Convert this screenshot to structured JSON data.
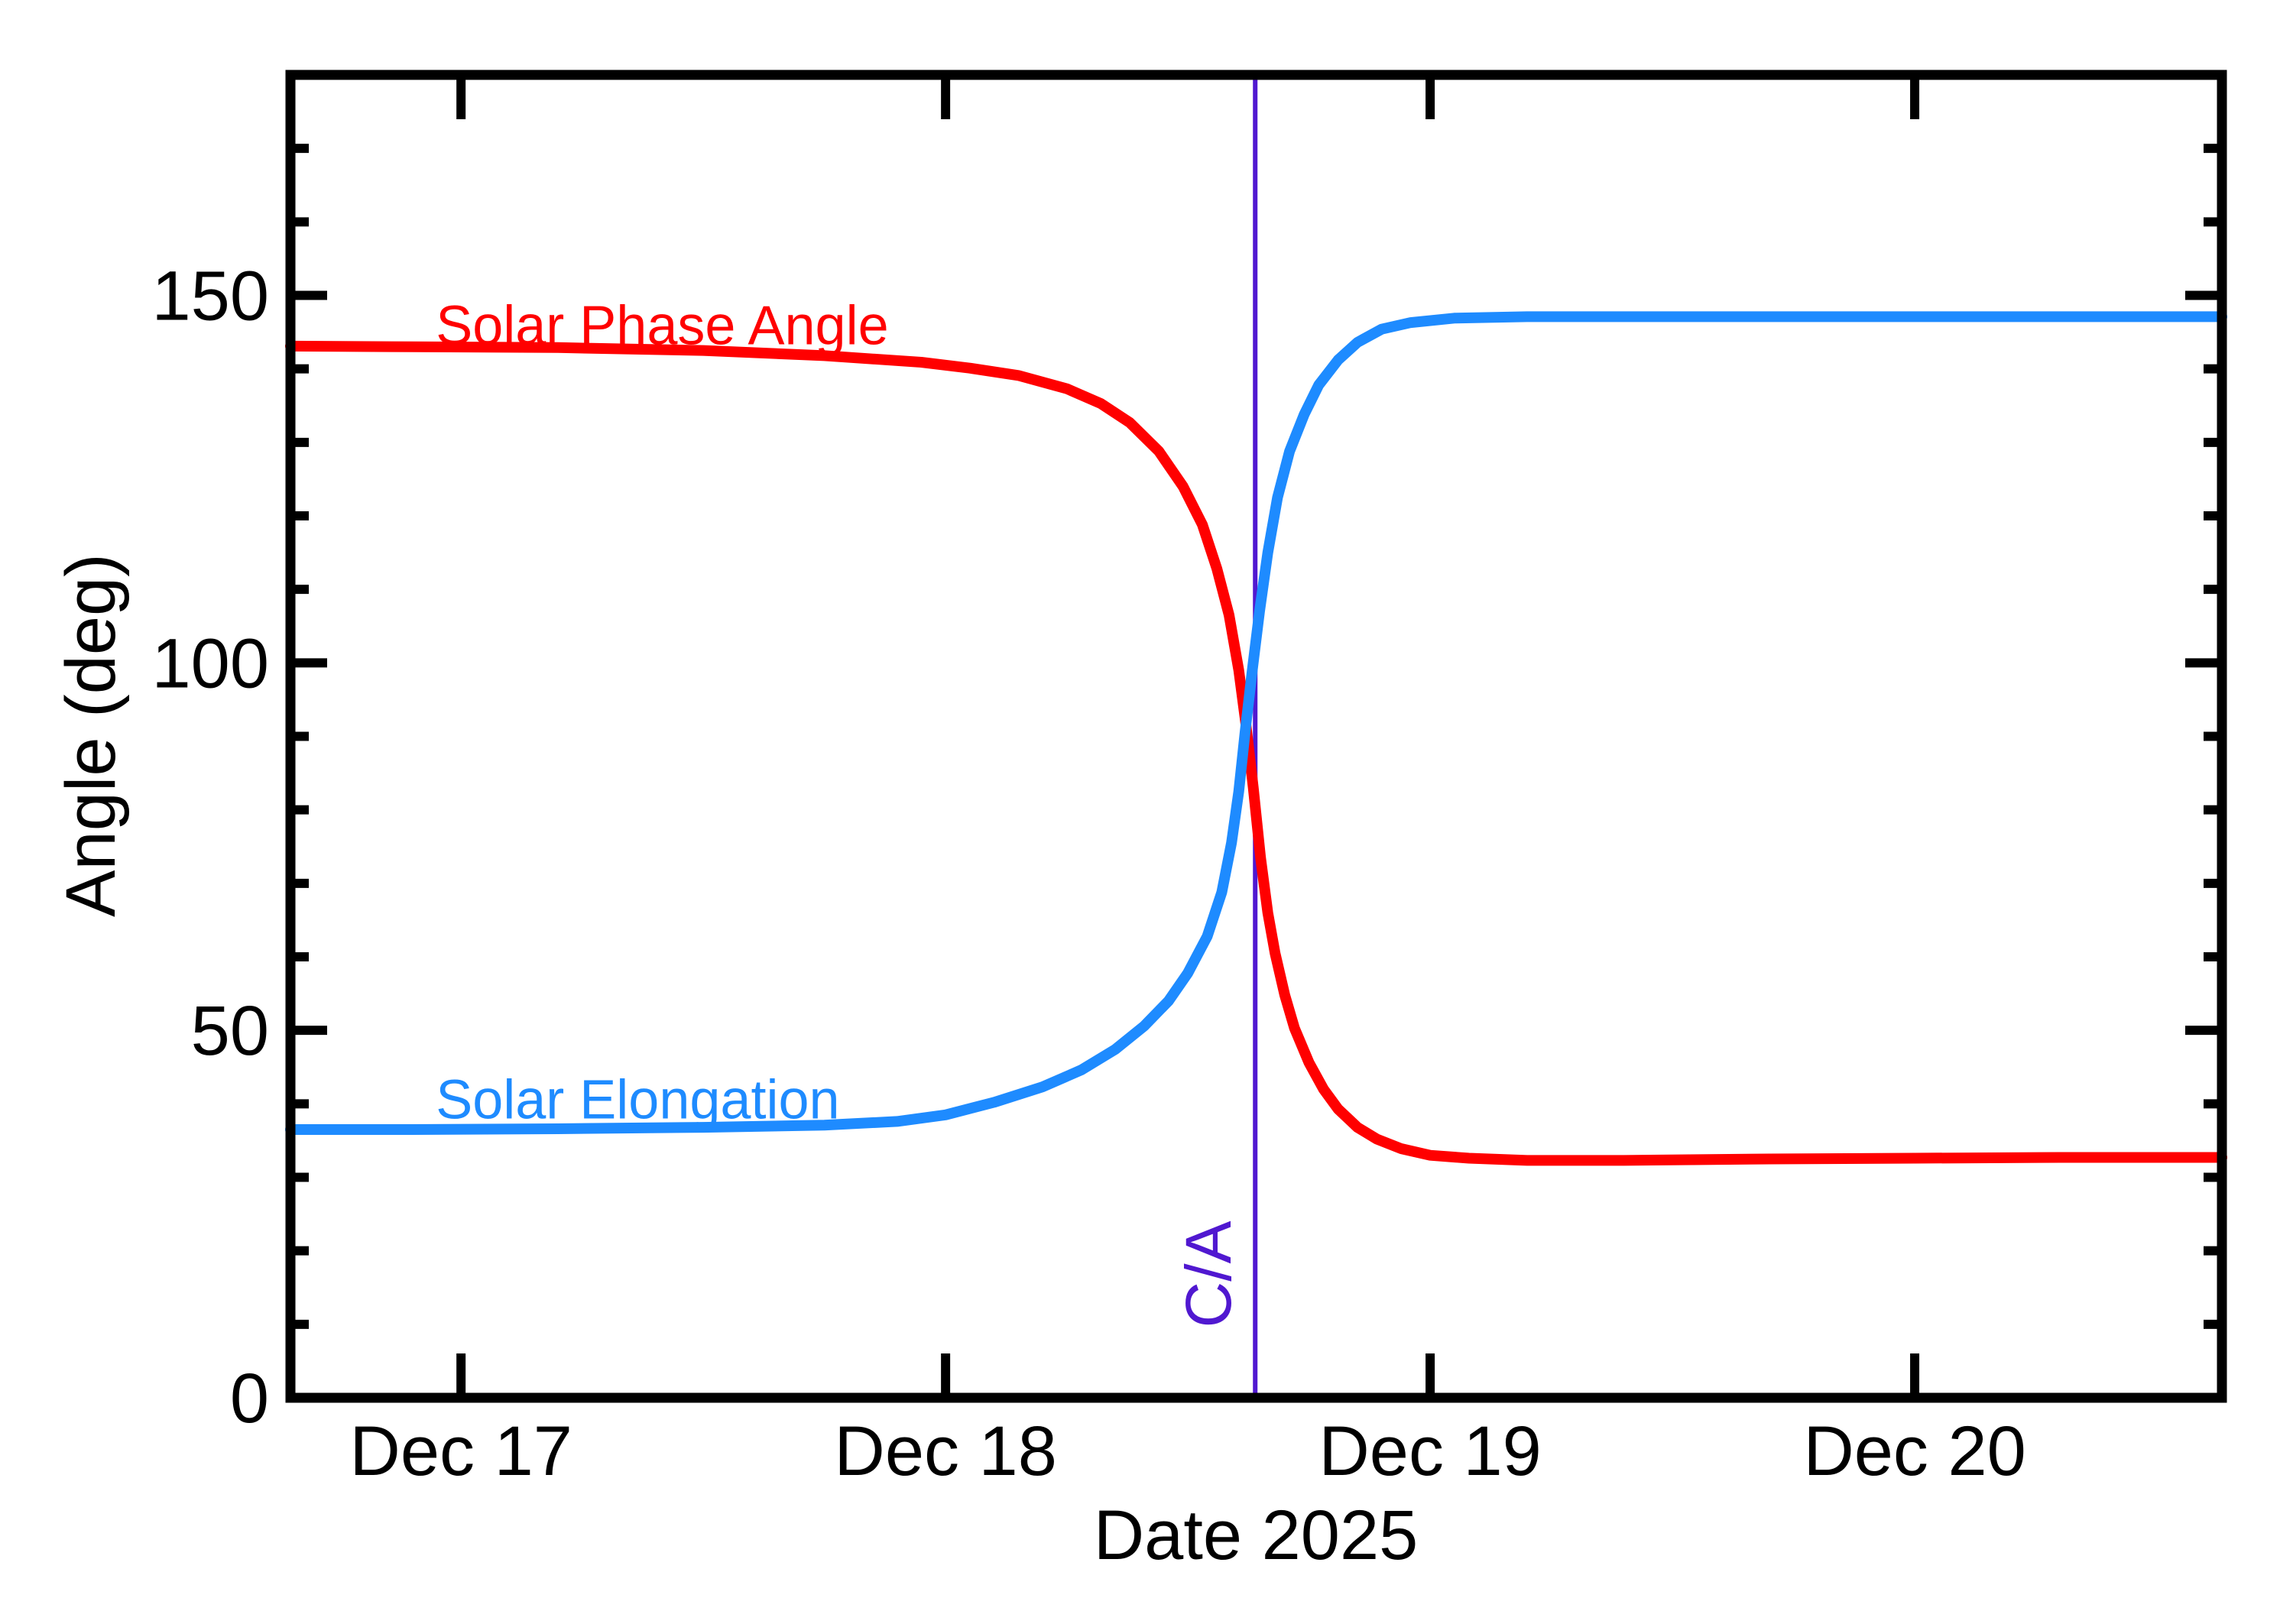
{
  "figure": {
    "background": "#ffffff",
    "frame_color": "#000000"
  },
  "chart_data": {
    "type": "line",
    "title": "",
    "xlabel": "Date 2025",
    "ylabel": "Angle (deg)",
    "grid": false,
    "legend": "inline-curve-labels",
    "x_axis": {
      "range_days": [
        16.648,
        20.634
      ],
      "tick_days": [
        17,
        18,
        19,
        20
      ],
      "tick_labels": [
        "Dec 17",
        "Dec 18",
        "Dec 19",
        "Dec 20"
      ]
    },
    "y_axis": {
      "range": [
        0,
        180
      ],
      "ticks": [
        0,
        50,
        100,
        150
      ],
      "tick_labels": [
        "0",
        "50",
        "100",
        "150"
      ],
      "minor_step": 10
    },
    "ca_marker": {
      "label": "C/A",
      "day": 18.639,
      "color": "#5018d0",
      "label_deg": 16.8
    },
    "series": [
      {
        "name": "Solar Phase Angle",
        "color": "#ff0000",
        "label_anchor": {
          "day": 16.948,
          "deg": 143.35
        },
        "points": [
          [
            16.648,
            143.1
          ],
          [
            16.9,
            143.0
          ],
          [
            17.2,
            142.9
          ],
          [
            17.5,
            142.5
          ],
          [
            17.75,
            141.8
          ],
          [
            17.95,
            140.9
          ],
          [
            18.05,
            140.1
          ],
          [
            18.15,
            139.1
          ],
          [
            18.25,
            137.3
          ],
          [
            18.32,
            135.3
          ],
          [
            18.38,
            132.7
          ],
          [
            18.44,
            128.8
          ],
          [
            18.49,
            124.0
          ],
          [
            18.53,
            118.8
          ],
          [
            18.56,
            112.8
          ],
          [
            18.585,
            106.5
          ],
          [
            18.605,
            99.0
          ],
          [
            18.62,
            91.5
          ],
          [
            18.635,
            83.0
          ],
          [
            18.65,
            73.5
          ],
          [
            18.665,
            66.0
          ],
          [
            18.68,
            60.5
          ],
          [
            18.7,
            54.8
          ],
          [
            18.72,
            50.3
          ],
          [
            18.75,
            45.6
          ],
          [
            18.78,
            42.0
          ],
          [
            18.81,
            39.3
          ],
          [
            18.85,
            36.8
          ],
          [
            18.89,
            35.2
          ],
          [
            18.94,
            33.9
          ],
          [
            19.0,
            33.0
          ],
          [
            19.08,
            32.6
          ],
          [
            19.2,
            32.3
          ],
          [
            19.4,
            32.3
          ],
          [
            19.7,
            32.5
          ],
          [
            20.0,
            32.6
          ],
          [
            20.3,
            32.7
          ],
          [
            20.634,
            32.7
          ]
        ]
      },
      {
        "name": "Solar Elongation",
        "color": "#1e8bff",
        "label_anchor": {
          "day": 16.948,
          "deg": 38.0
        },
        "points": [
          [
            16.648,
            36.5
          ],
          [
            16.9,
            36.5
          ],
          [
            17.2,
            36.6
          ],
          [
            17.5,
            36.8
          ],
          [
            17.75,
            37.1
          ],
          [
            17.9,
            37.6
          ],
          [
            18.0,
            38.5
          ],
          [
            18.1,
            40.2
          ],
          [
            18.2,
            42.3
          ],
          [
            18.28,
            44.6
          ],
          [
            18.35,
            47.4
          ],
          [
            18.41,
            50.6
          ],
          [
            18.46,
            54.0
          ],
          [
            18.5,
            57.8
          ],
          [
            18.54,
            62.8
          ],
          [
            18.57,
            68.8
          ],
          [
            18.59,
            75.5
          ],
          [
            18.605,
            82.5
          ],
          [
            18.618,
            90.5
          ],
          [
            18.632,
            98.5
          ],
          [
            18.648,
            107.0
          ],
          [
            18.665,
            115.0
          ],
          [
            18.685,
            122.5
          ],
          [
            18.71,
            128.8
          ],
          [
            18.74,
            133.8
          ],
          [
            18.77,
            137.8
          ],
          [
            18.81,
            141.2
          ],
          [
            18.85,
            143.6
          ],
          [
            18.9,
            145.4
          ],
          [
            18.96,
            146.3
          ],
          [
            19.05,
            146.9
          ],
          [
            19.2,
            147.1
          ],
          [
            19.5,
            147.1
          ],
          [
            20.0,
            147.1
          ],
          [
            20.634,
            147.1
          ]
        ]
      }
    ]
  }
}
